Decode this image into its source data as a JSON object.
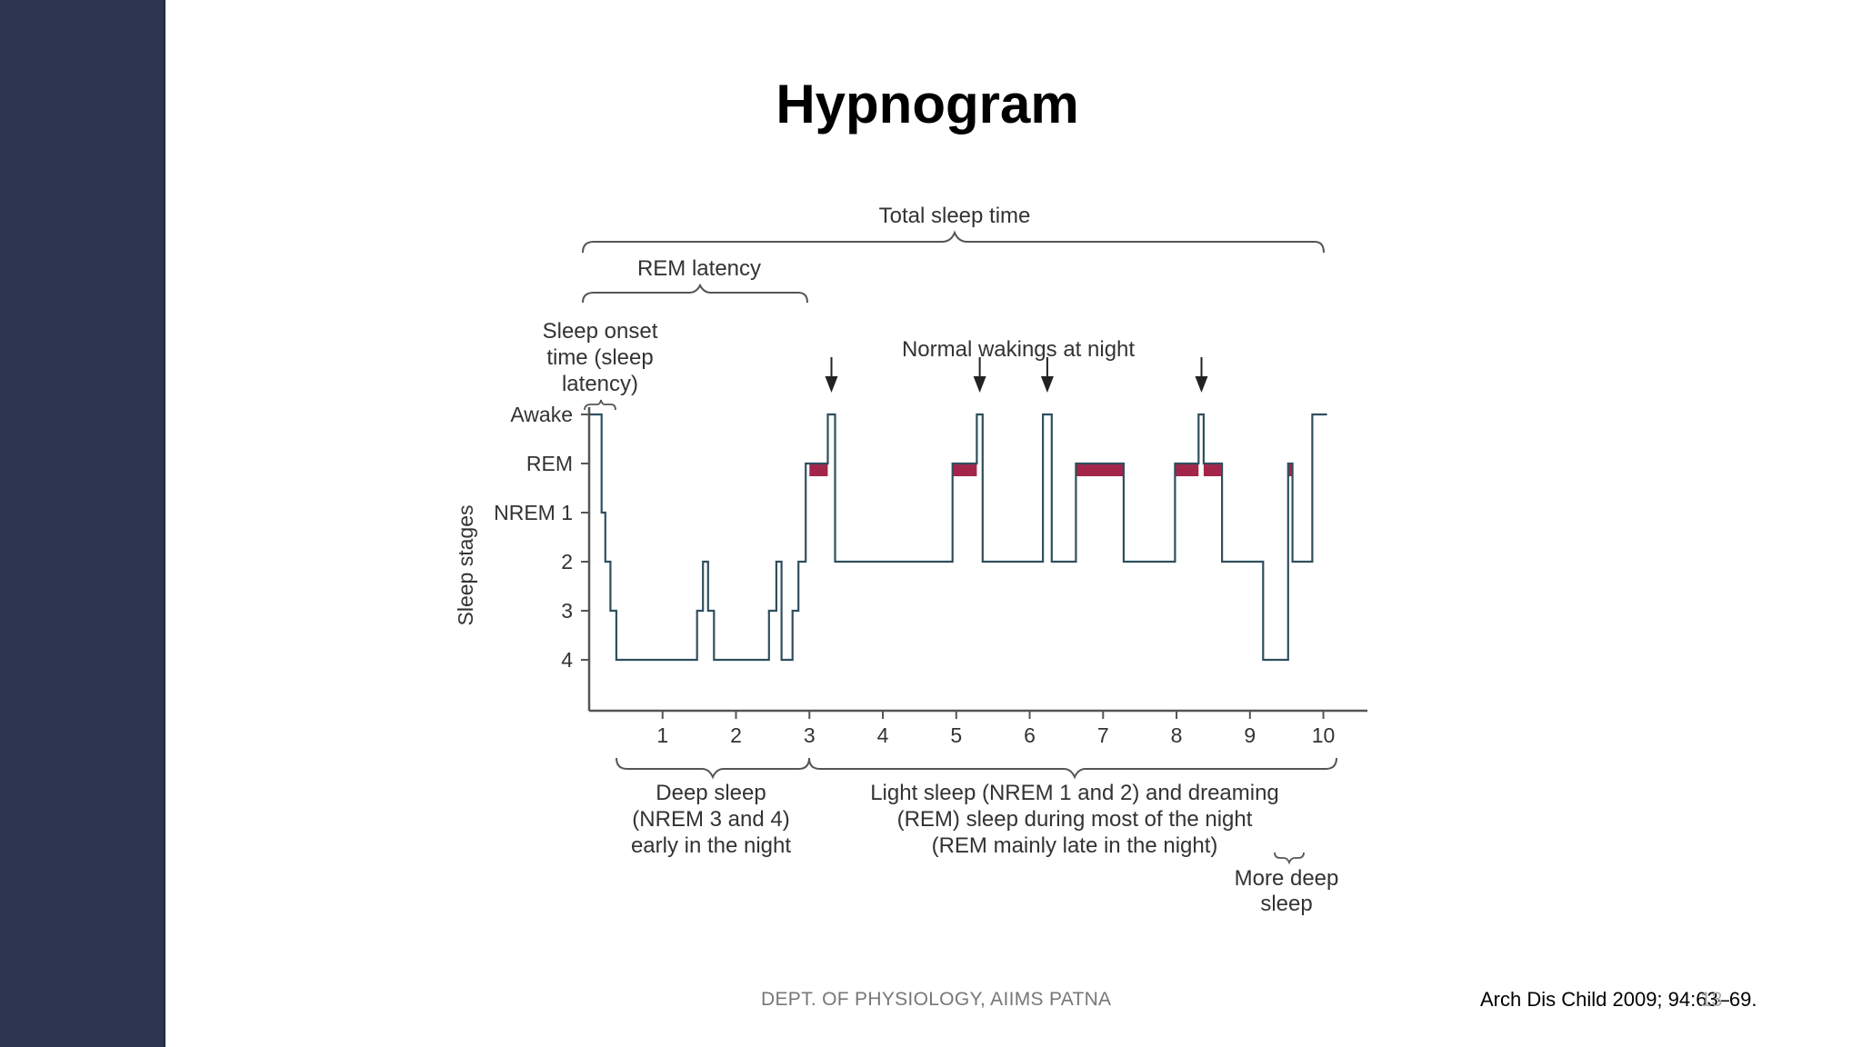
{
  "slide": {
    "title": "Hypnogram",
    "footer_dept": "DEPT. OF PHYSIOLOGY, AIIMS PATNA",
    "footer_reference": "Arch Dis Child 2009; 94:63–69.",
    "slide_number": "13"
  },
  "colors": {
    "sidebar": "#2e3550",
    "trace": "#2f4f5e",
    "rem_bar": "#a3264a",
    "text": "#333333"
  },
  "chart_data": {
    "type": "line",
    "ylabel": "Sleep stages",
    "xlabel": "",
    "x_ticks": [
      1,
      2,
      3,
      4,
      5,
      6,
      7,
      8,
      9,
      10
    ],
    "x_tick_labels": [
      "1",
      "2",
      "3",
      "4",
      "5",
      "6",
      "7",
      "8",
      "9",
      "10"
    ],
    "y_levels": [
      "Awake",
      "REM",
      "NREM 1",
      "2",
      "3",
      "4"
    ],
    "xlim": [
      0,
      10.6
    ],
    "ylim": [
      0,
      5
    ],
    "trace": [
      [
        0,
        0
      ],
      [
        0.17,
        0
      ],
      [
        0.17,
        2
      ],
      [
        0.22,
        2
      ],
      [
        0.22,
        3
      ],
      [
        0.29,
        3
      ],
      [
        0.29,
        4
      ],
      [
        0.37,
        4
      ],
      [
        0.37,
        5
      ],
      [
        1.47,
        5
      ],
      [
        1.47,
        4
      ],
      [
        1.55,
        4
      ],
      [
        1.55,
        3
      ],
      [
        1.62,
        3
      ],
      [
        1.62,
        4
      ],
      [
        1.7,
        4
      ],
      [
        1.7,
        5
      ],
      [
        2.45,
        5
      ],
      [
        2.45,
        4
      ],
      [
        2.55,
        4
      ],
      [
        2.55,
        3
      ],
      [
        2.62,
        3
      ],
      [
        2.62,
        5
      ],
      [
        2.77,
        5
      ],
      [
        2.77,
        4
      ],
      [
        2.85,
        4
      ],
      [
        2.85,
        3
      ],
      [
        2.95,
        3
      ],
      [
        2.95,
        1
      ],
      [
        3.25,
        1
      ],
      [
        3.25,
        0
      ],
      [
        3.35,
        0
      ],
      [
        3.35,
        3
      ],
      [
        4.95,
        3
      ],
      [
        4.95,
        1
      ],
      [
        5.28,
        1
      ],
      [
        5.28,
        0
      ],
      [
        5.36,
        0
      ],
      [
        5.36,
        3
      ],
      [
        6.18,
        3
      ],
      [
        6.18,
        0
      ],
      [
        6.3,
        0
      ],
      [
        6.3,
        3
      ],
      [
        6.63,
        3
      ],
      [
        6.63,
        1
      ],
      [
        7.28,
        1
      ],
      [
        7.28,
        3
      ],
      [
        7.98,
        3
      ],
      [
        7.98,
        1
      ],
      [
        8.3,
        1
      ],
      [
        8.3,
        0
      ],
      [
        8.37,
        0
      ],
      [
        8.37,
        1
      ],
      [
        8.62,
        1
      ],
      [
        8.62,
        3
      ],
      [
        9.18,
        3
      ],
      [
        9.18,
        5
      ],
      [
        9.52,
        5
      ],
      [
        9.52,
        1
      ],
      [
        9.58,
        1
      ],
      [
        9.58,
        3
      ],
      [
        9.85,
        3
      ],
      [
        9.85,
        0
      ],
      [
        10.05,
        0
      ]
    ],
    "rem_periods": [
      [
        3.0,
        3.25
      ],
      [
        4.95,
        5.28
      ],
      [
        6.63,
        7.28
      ],
      [
        7.98,
        8.3
      ],
      [
        8.37,
        8.62
      ],
      [
        9.52,
        9.58
      ]
    ],
    "waking_arrows_x": [
      3.3,
      5.32,
      6.24,
      8.34
    ],
    "annotations": {
      "total_sleep_time": "Total sleep time",
      "rem_latency": "REM latency",
      "sleep_onset": [
        "Sleep onset",
        "time (sleep",
        "latency)"
      ],
      "normal_wakings": "Normal wakings at night",
      "deep_sleep": [
        "Deep sleep",
        "(NREM 3 and 4)",
        "early in the night"
      ],
      "light_sleep": [
        "Light sleep (NREM 1 and 2) and dreaming",
        "(REM) sleep during most of the night",
        "(REM mainly late in the night)"
      ],
      "more_deep_sleep": [
        "More deep",
        "sleep"
      ]
    }
  }
}
